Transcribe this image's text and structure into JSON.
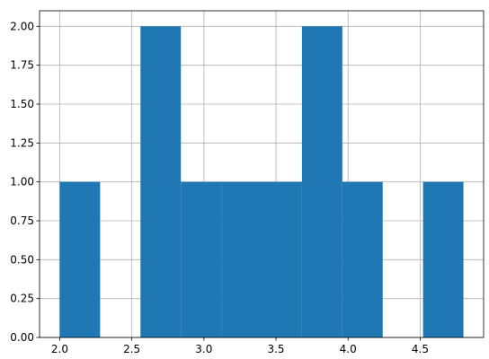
{
  "chart_data": {
    "type": "bar",
    "title": "",
    "xlabel": "",
    "ylabel": "",
    "xlim": [
      1.86,
      4.94
    ],
    "ylim": [
      0,
      2.1
    ],
    "grid": true,
    "bar_color": "#1f77b4",
    "grid_color": "#b0b0b0",
    "x_ticks": [
      {
        "value": 2.0,
        "label": "2.0"
      },
      {
        "value": 2.5,
        "label": "2.5"
      },
      {
        "value": 3.0,
        "label": "3.0"
      },
      {
        "value": 3.5,
        "label": "3.5"
      },
      {
        "value": 4.0,
        "label": "4.0"
      },
      {
        "value": 4.5,
        "label": "4.5"
      }
    ],
    "y_ticks": [
      {
        "value": 0.0,
        "label": "0.00"
      },
      {
        "value": 0.25,
        "label": "0.25"
      },
      {
        "value": 0.5,
        "label": "0.50"
      },
      {
        "value": 0.75,
        "label": "0.75"
      },
      {
        "value": 1.0,
        "label": "1.00"
      },
      {
        "value": 1.25,
        "label": "1.25"
      },
      {
        "value": 1.5,
        "label": "1.50"
      },
      {
        "value": 1.75,
        "label": "1.75"
      },
      {
        "value": 2.0,
        "label": "2.00"
      }
    ],
    "bins": [
      {
        "start": 2.0,
        "end": 2.28,
        "value": 1
      },
      {
        "start": 2.28,
        "end": 2.56,
        "value": 0
      },
      {
        "start": 2.56,
        "end": 2.84,
        "value": 2
      },
      {
        "start": 2.84,
        "end": 3.12,
        "value": 1
      },
      {
        "start": 3.12,
        "end": 3.4,
        "value": 1
      },
      {
        "start": 3.4,
        "end": 3.68,
        "value": 1
      },
      {
        "start": 3.68,
        "end": 3.96,
        "value": 2
      },
      {
        "start": 3.96,
        "end": 4.24,
        "value": 1
      },
      {
        "start": 4.24,
        "end": 4.52,
        "value": 0
      },
      {
        "start": 4.52,
        "end": 4.8,
        "value": 1
      }
    ]
  }
}
